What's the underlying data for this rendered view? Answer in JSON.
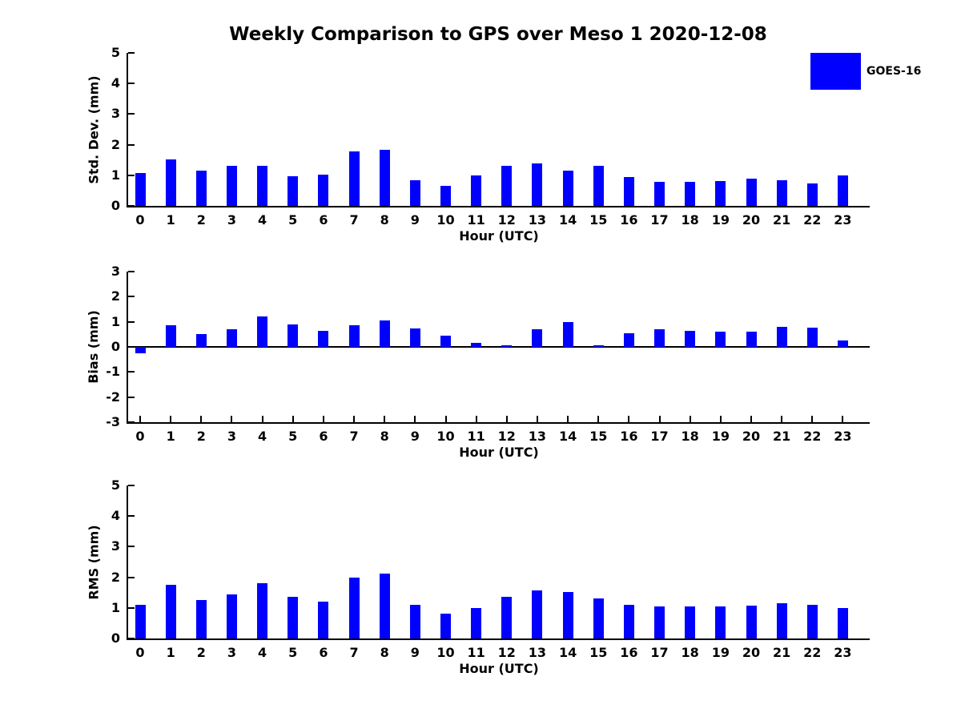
{
  "figure": {
    "title": "Weekly Comparison to GPS over Meso 1 2020-12-08",
    "background": "#FFFFFF"
  },
  "legend": {
    "label": "GOES-16",
    "swatch_color": "#0000FF",
    "position": "top-right"
  },
  "colors": {
    "bar": "#0000FF",
    "axis": "#000000",
    "text": "#000000"
  },
  "chart_data": [
    {
      "type": "bar",
      "name": "std-dev",
      "ylabel": "Std. Dev. (mm)",
      "xlabel": "Hour (UTC)",
      "ylim": [
        0,
        5
      ],
      "yticks": [
        0,
        1,
        2,
        3,
        4,
        5
      ],
      "grid": false,
      "categories": [
        "0",
        "1",
        "2",
        "3",
        "4",
        "5",
        "6",
        "7",
        "8",
        "9",
        "10",
        "11",
        "12",
        "13",
        "14",
        "15",
        "16",
        "17",
        "18",
        "19",
        "20",
        "21",
        "22",
        "23"
      ],
      "series": [
        {
          "name": "GOES-16",
          "color": "#0000FF",
          "values": [
            1.07,
            1.53,
            1.15,
            1.3,
            1.3,
            0.97,
            1.02,
            1.79,
            1.82,
            0.85,
            0.65,
            1.0,
            1.32,
            1.4,
            1.15,
            1.3,
            0.93,
            0.78,
            0.78,
            0.8,
            0.88,
            0.83,
            0.72,
            1.0
          ]
        }
      ]
    },
    {
      "type": "bar",
      "name": "bias",
      "ylabel": "Bias (mm)",
      "xlabel": "Hour (UTC)",
      "ylim": [
        -3,
        3
      ],
      "yticks": [
        3,
        2,
        1,
        0,
        -1,
        -2,
        -3
      ],
      "grid": false,
      "categories": [
        "0",
        "1",
        "2",
        "3",
        "4",
        "5",
        "6",
        "7",
        "8",
        "9",
        "10",
        "11",
        "12",
        "13",
        "14",
        "15",
        "16",
        "17",
        "18",
        "19",
        "20",
        "21",
        "22",
        "23"
      ],
      "series": [
        {
          "name": "GOES-16",
          "color": "#0000FF",
          "values": [
            -0.27,
            0.85,
            0.5,
            0.7,
            1.22,
            0.9,
            0.63,
            0.85,
            1.05,
            0.75,
            0.45,
            0.15,
            0.05,
            0.7,
            1.0,
            0.05,
            0.55,
            0.7,
            0.65,
            0.6,
            0.6,
            0.8,
            0.78,
            0.25
          ]
        }
      ]
    },
    {
      "type": "bar",
      "name": "rms",
      "ylabel": "RMS (mm)",
      "xlabel": "Hour (UTC)",
      "ylim": [
        0,
        5
      ],
      "yticks": [
        0,
        1,
        2,
        3,
        4,
        5
      ],
      "grid": false,
      "categories": [
        "0",
        "1",
        "2",
        "3",
        "4",
        "5",
        "6",
        "7",
        "8",
        "9",
        "10",
        "11",
        "12",
        "13",
        "14",
        "15",
        "16",
        "17",
        "18",
        "19",
        "20",
        "21",
        "22",
        "23"
      ],
      "series": [
        {
          "name": "GOES-16",
          "color": "#0000FF",
          "values": [
            1.1,
            1.75,
            1.25,
            1.45,
            1.8,
            1.35,
            1.2,
            2.0,
            2.12,
            1.1,
            0.8,
            1.0,
            1.35,
            1.58,
            1.53,
            1.3,
            1.1,
            1.05,
            1.05,
            1.05,
            1.07,
            1.15,
            1.1,
            1.0
          ]
        }
      ]
    }
  ]
}
